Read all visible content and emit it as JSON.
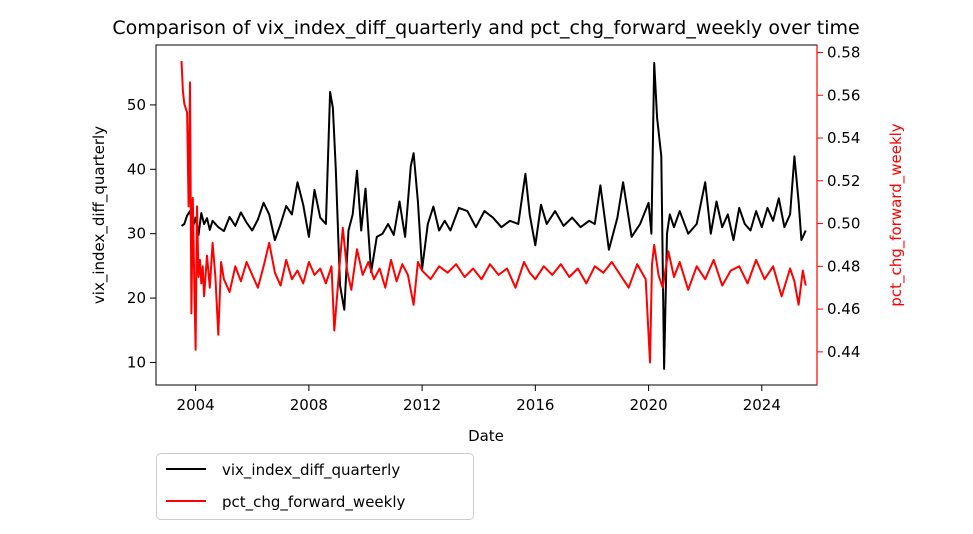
{
  "chart_data": {
    "type": "line",
    "title": "Comparison of vix_index_diff_quarterly and pct_chg_forward_weekly over time",
    "xlabel": "Date",
    "ylabel_left": "vix_index_diff_quarterly",
    "ylabel_right": "pct_chg_forward_weekly",
    "x_ticks": [
      "2004",
      "2008",
      "2012",
      "2016",
      "2020",
      "2024"
    ],
    "x_tick_years": [
      2004,
      2008,
      2012,
      2016,
      2020,
      2024
    ],
    "xlim": [
      2002.6,
      2025.95
    ],
    "y_left_ticks": [
      10,
      20,
      30,
      40,
      50
    ],
    "y_left_lim": [
      6.5,
      59.3
    ],
    "y_right_ticks": [
      "0.44",
      "0.46",
      "0.48",
      "0.50",
      "0.52",
      "0.54",
      "0.56",
      "0.58"
    ],
    "y_right_tick_values": [
      0.44,
      0.46,
      0.48,
      0.5,
      0.52,
      0.54,
      0.56,
      0.58
    ],
    "y_right_lim": [
      0.4245,
      0.5835
    ],
    "grid": false,
    "legend_position": "below-left",
    "colors": {
      "left_axis": "#000000",
      "right_axis": "#ff0000"
    },
    "series": [
      {
        "name": "vix_index_diff_quarterly",
        "axis": "left",
        "color": "#000000",
        "x": [
          2003.5,
          2003.6,
          2003.7,
          2003.8,
          2003.9,
          2004.0,
          2004.1,
          2004.2,
          2004.3,
          2004.4,
          2004.5,
          2004.6,
          2004.8,
          2005.0,
          2005.2,
          2005.4,
          2005.6,
          2005.8,
          2006.0,
          2006.2,
          2006.4,
          2006.6,
          2006.8,
          2007.0,
          2007.2,
          2007.4,
          2007.6,
          2007.8,
          2008.0,
          2008.2,
          2008.4,
          2008.6,
          2008.75,
          2008.85,
          2008.95,
          2009.1,
          2009.25,
          2009.4,
          2009.55,
          2009.7,
          2009.85,
          2010.0,
          2010.2,
          2010.4,
          2010.6,
          2010.8,
          2011.0,
          2011.2,
          2011.4,
          2011.6,
          2011.7,
          2011.85,
          2012.0,
          2012.2,
          2012.4,
          2012.6,
          2012.8,
          2013.0,
          2013.3,
          2013.6,
          2013.9,
          2014.2,
          2014.5,
          2014.8,
          2015.1,
          2015.4,
          2015.65,
          2015.8,
          2016.0,
          2016.2,
          2016.4,
          2016.7,
          2017.0,
          2017.3,
          2017.6,
          2017.9,
          2018.1,
          2018.3,
          2018.6,
          2018.9,
          2019.1,
          2019.4,
          2019.7,
          2020.0,
          2020.1,
          2020.2,
          2020.3,
          2020.45,
          2020.55,
          2020.65,
          2020.75,
          2020.9,
          2021.1,
          2021.4,
          2021.7,
          2022.0,
          2022.2,
          2022.4,
          2022.6,
          2022.8,
          2023.0,
          2023.2,
          2023.4,
          2023.6,
          2023.8,
          2024.0,
          2024.2,
          2024.4,
          2024.6,
          2024.8,
          2025.0,
          2025.15,
          2025.3,
          2025.4,
          2025.55
        ],
        "y": [
          31.2,
          31.5,
          32.8,
          33.5,
          31.0,
          32.5,
          29.8,
          33.2,
          31.5,
          32.4,
          30.6,
          32.0,
          31.0,
          30.4,
          32.6,
          31.2,
          33.3,
          31.7,
          30.5,
          32.2,
          34.8,
          33.0,
          29.0,
          31.5,
          34.3,
          33.0,
          38.0,
          34.5,
          29.5,
          36.8,
          32.5,
          31.5,
          52.0,
          49.5,
          40.0,
          22.0,
          18.2,
          30.5,
          33.0,
          39.8,
          30.5,
          37.0,
          24.0,
          29.5,
          30.0,
          31.5,
          29.8,
          35.0,
          29.5,
          40.5,
          42.5,
          35.0,
          24.5,
          31.5,
          34.2,
          30.5,
          32.0,
          30.5,
          34.0,
          33.5,
          31.0,
          33.5,
          32.5,
          31.0,
          32.0,
          31.5,
          39.3,
          33.0,
          28.2,
          34.5,
          31.5,
          33.5,
          31.2,
          32.5,
          31.0,
          32.0,
          31.5,
          37.5,
          27.5,
          32.5,
          38.0,
          29.5,
          31.5,
          34.8,
          30.0,
          56.5,
          48.0,
          42.0,
          9.0,
          30.0,
          33.0,
          31.0,
          33.5,
          30.0,
          31.5,
          38.0,
          30.0,
          35.0,
          31.0,
          33.0,
          29.0,
          34.0,
          31.5,
          30.5,
          33.5,
          31.0,
          34.0,
          32.0,
          35.5,
          31.0,
          33.0,
          42.0,
          35.0,
          29.0,
          30.5
        ]
      },
      {
        "name": "pct_chg_forward_weekly",
        "axis": "right",
        "color": "#ff0000",
        "x": [
          2003.5,
          2003.55,
          2003.6,
          2003.7,
          2003.75,
          2003.8,
          2003.85,
          2003.9,
          2003.95,
          2004.0,
          2004.05,
          2004.1,
          2004.15,
          2004.2,
          2004.25,
          2004.3,
          2004.4,
          2004.5,
          2004.6,
          2004.7,
          2004.8,
          2004.9,
          2005.0,
          2005.2,
          2005.4,
          2005.6,
          2005.8,
          2006.0,
          2006.2,
          2006.4,
          2006.6,
          2006.8,
          2007.0,
          2007.2,
          2007.4,
          2007.6,
          2007.8,
          2008.0,
          2008.2,
          2008.4,
          2008.6,
          2008.8,
          2008.9,
          2009.05,
          2009.2,
          2009.35,
          2009.5,
          2009.7,
          2009.9,
          2010.1,
          2010.3,
          2010.5,
          2010.7,
          2010.9,
          2011.1,
          2011.3,
          2011.5,
          2011.7,
          2011.85,
          2012.0,
          2012.3,
          2012.6,
          2012.9,
          2013.2,
          2013.5,
          2013.8,
          2014.1,
          2014.4,
          2014.7,
          2015.0,
          2015.3,
          2015.6,
          2015.8,
          2016.0,
          2016.3,
          2016.6,
          2016.9,
          2017.2,
          2017.5,
          2017.8,
          2018.1,
          2018.4,
          2018.7,
          2019.0,
          2019.3,
          2019.6,
          2019.9,
          2020.05,
          2020.12,
          2020.2,
          2020.35,
          2020.5,
          2020.7,
          2020.9,
          2021.1,
          2021.4,
          2021.7,
          2022.0,
          2022.3,
          2022.6,
          2022.9,
          2023.2,
          2023.5,
          2023.8,
          2024.1,
          2024.4,
          2024.7,
          2025.0,
          2025.15,
          2025.3,
          2025.45,
          2025.55
        ],
        "y": [
          0.576,
          0.562,
          0.556,
          0.552,
          0.508,
          0.566,
          0.458,
          0.512,
          0.475,
          0.441,
          0.508,
          0.475,
          0.483,
          0.472,
          0.48,
          0.466,
          0.485,
          0.47,
          0.491,
          0.475,
          0.448,
          0.482,
          0.474,
          0.468,
          0.48,
          0.473,
          0.482,
          0.476,
          0.47,
          0.48,
          0.491,
          0.477,
          0.471,
          0.483,
          0.474,
          0.478,
          0.472,
          0.482,
          0.476,
          0.479,
          0.472,
          0.48,
          0.45,
          0.475,
          0.498,
          0.478,
          0.469,
          0.488,
          0.476,
          0.482,
          0.474,
          0.479,
          0.47,
          0.483,
          0.473,
          0.481,
          0.476,
          0.462,
          0.482,
          0.478,
          0.474,
          0.48,
          0.477,
          0.481,
          0.475,
          0.479,
          0.474,
          0.481,
          0.476,
          0.479,
          0.47,
          0.482,
          0.477,
          0.474,
          0.48,
          0.476,
          0.481,
          0.475,
          0.479,
          0.472,
          0.48,
          0.477,
          0.482,
          0.476,
          0.47,
          0.481,
          0.474,
          0.435,
          0.481,
          0.49,
          0.476,
          0.47,
          0.487,
          0.475,
          0.482,
          0.469,
          0.48,
          0.474,
          0.483,
          0.471,
          0.478,
          0.48,
          0.472,
          0.483,
          0.474,
          0.48,
          0.466,
          0.479,
          0.473,
          0.462,
          0.478,
          0.471
        ]
      }
    ]
  }
}
